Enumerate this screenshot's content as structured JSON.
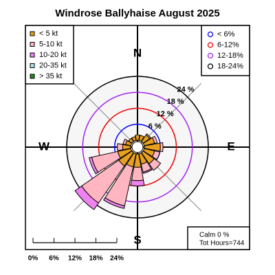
{
  "chart_data": {
    "type": "windrose",
    "title": "Windrose  Ballyhaise August 2025",
    "categories": [
      "N",
      null,
      null,
      null,
      "E",
      null,
      null,
      null,
      "S",
      null,
      null,
      null,
      "W",
      null,
      null,
      null
    ],
    "series": [
      {
        "name": "< 5  kt",
        "color": "#e8a020",
        "values": [
          2,
          2,
          3,
          4,
          6,
          4,
          5,
          4,
          5,
          5,
          6,
          5,
          3,
          2,
          1.5,
          1.5
        ]
      },
      {
        "name": "5-10 kt",
        "color": "#ffb6c1",
        "values": [
          0,
          0,
          0.5,
          1,
          1,
          2,
          3,
          3,
          5,
          15,
          17,
          10,
          2,
          1,
          0,
          0
        ]
      },
      {
        "name": "10-20 kt",
        "color": "#ee82ee",
        "values": [
          0,
          0,
          0,
          0,
          0,
          0,
          0,
          0.5,
          2,
          1,
          3,
          1,
          0,
          0,
          0,
          0
        ]
      },
      {
        "name": "20-35 kt",
        "color": "#b0e0e6",
        "values": [
          0,
          0,
          0,
          0,
          0,
          0,
          0,
          0,
          0,
          0,
          0,
          0,
          0,
          0,
          0,
          0
        ]
      },
      {
        "name": "> 35 kt",
        "color": "#228b22",
        "values": [
          0,
          0,
          0,
          0,
          0,
          0,
          0,
          0,
          0,
          0,
          0,
          0,
          0,
          0,
          0,
          0
        ]
      }
    ],
    "rlim": [
      0,
      24
    ],
    "rings": [
      {
        "value": 6,
        "label": "6 %",
        "color": "#0000ff"
      },
      {
        "value": 12,
        "label": "12 %",
        "color": "#ee0000"
      },
      {
        "value": 18,
        "label": "18 %",
        "color": "#a020f0"
      },
      {
        "value": 24,
        "label": "24 %",
        "color": "#000000"
      }
    ],
    "ring_legend": [
      "< 6%",
      "6-12%",
      "12-18%",
      "18-24%"
    ],
    "scale_ticks": [
      {
        "value": 0,
        "label": "0%"
      },
      {
        "value": 6,
        "label": "6%"
      },
      {
        "value": 12,
        "label": "12%"
      },
      {
        "value": 18,
        "label": "18%"
      },
      {
        "value": 24,
        "label": "24%"
      }
    ],
    "calm_label": "Calm 0 %",
    "total_label": "Tot Hours=744"
  }
}
